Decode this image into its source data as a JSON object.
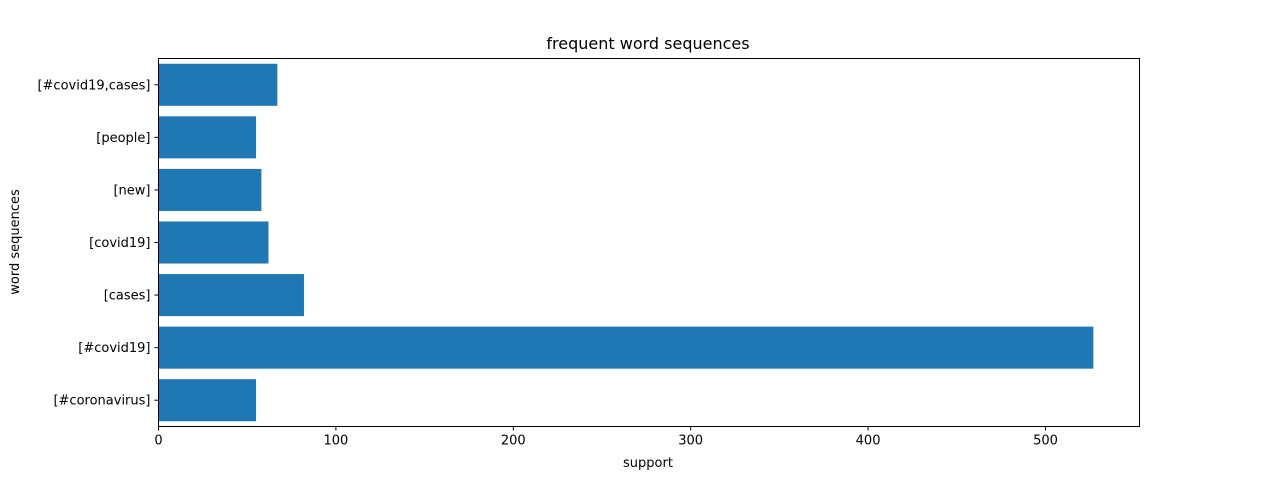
{
  "chart_data": {
    "type": "bar",
    "orientation": "horizontal",
    "title": "frequent word sequences",
    "xlabel": "support",
    "ylabel": "word sequences",
    "categories": [
      "[#coronavirus]",
      "[#covid19]",
      "[cases]",
      "[covid19]",
      "[new]",
      "[people]",
      "[#covid19,cases]"
    ],
    "values": [
      55,
      527,
      82,
      62,
      58,
      55,
      67
    ],
    "xlim": [
      0,
      553
    ],
    "xticks": [
      0,
      100,
      200,
      300,
      400,
      500
    ],
    "bar_color": "#1f77b4",
    "grid": false,
    "legend": "none"
  }
}
